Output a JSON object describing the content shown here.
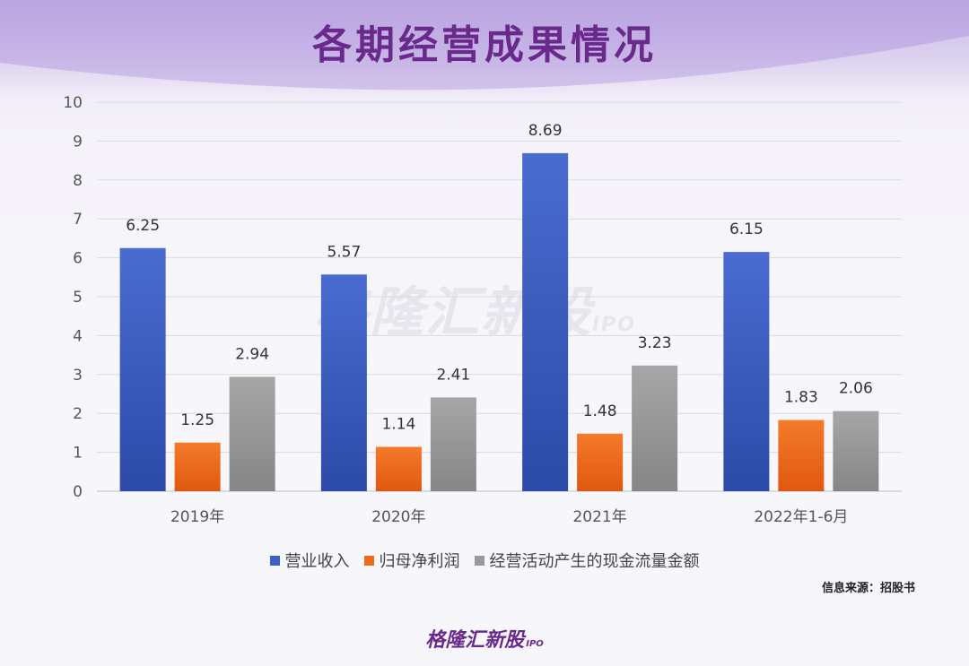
{
  "title": "各期经营成果情况",
  "source_note": "信息来源：招股书",
  "watermark": {
    "brand": "格隆汇新股",
    "sub": "IPO"
  },
  "footer_logo": {
    "brand": "格隆汇新股",
    "sub": "IPO"
  },
  "colors": {
    "revenue": "#3f5fc8",
    "net_profit": "#ee6a1a",
    "cash_flow": "#9a9a9a",
    "title": "#6a2a8c"
  },
  "chart_data": {
    "type": "bar",
    "categories": [
      "2019年",
      "2020年",
      "2021年",
      "2022年1-6月"
    ],
    "series": [
      {
        "name": "营业收入",
        "values": [
          6.25,
          5.57,
          8.69,
          6.15
        ]
      },
      {
        "name": "归母净利润",
        "values": [
          1.25,
          1.14,
          1.48,
          1.83
        ]
      },
      {
        "name": "经营活动产生的现金流量金额",
        "values": [
          2.94,
          2.41,
          3.23,
          2.06
        ]
      }
    ],
    "ylim": [
      0,
      10
    ],
    "yticks": [
      "0",
      "1",
      "2",
      "3",
      "4",
      "5",
      "6",
      "7",
      "8",
      "9",
      "10"
    ],
    "grid": true,
    "legend_position": "bottom"
  }
}
